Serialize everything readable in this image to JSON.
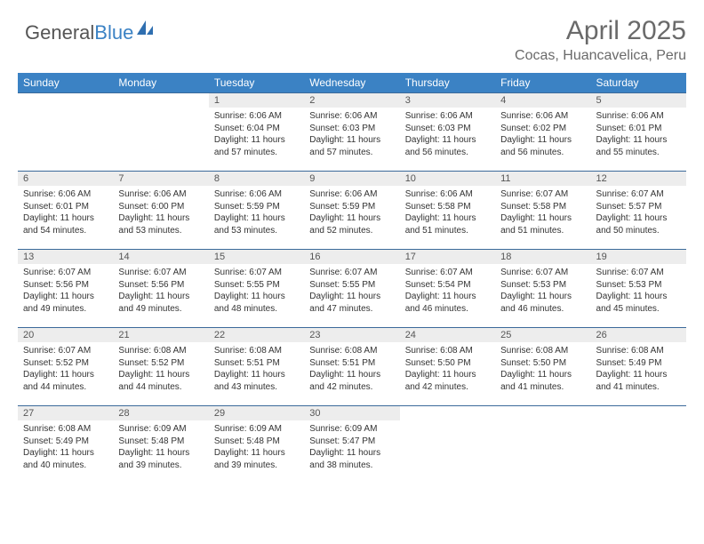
{
  "brand": {
    "name_a": "General",
    "name_b": "Blue"
  },
  "title": "April 2025",
  "location": "Cocas, Huancavelica, Peru",
  "colors": {
    "header_bg": "#3b82c4",
    "header_text": "#ffffff",
    "row_border": "#3b6a9a",
    "daynum_bg": "#ededed",
    "text": "#333333",
    "muted": "#6a6a6a"
  },
  "weekdays": [
    "Sunday",
    "Monday",
    "Tuesday",
    "Wednesday",
    "Thursday",
    "Friday",
    "Saturday"
  ],
  "weeks": [
    [
      {
        "n": "",
        "sr": "",
        "ss": "",
        "dl": ""
      },
      {
        "n": "",
        "sr": "",
        "ss": "",
        "dl": ""
      },
      {
        "n": "1",
        "sr": "Sunrise: 6:06 AM",
        "ss": "Sunset: 6:04 PM",
        "dl": "Daylight: 11 hours and 57 minutes."
      },
      {
        "n": "2",
        "sr": "Sunrise: 6:06 AM",
        "ss": "Sunset: 6:03 PM",
        "dl": "Daylight: 11 hours and 57 minutes."
      },
      {
        "n": "3",
        "sr": "Sunrise: 6:06 AM",
        "ss": "Sunset: 6:03 PM",
        "dl": "Daylight: 11 hours and 56 minutes."
      },
      {
        "n": "4",
        "sr": "Sunrise: 6:06 AM",
        "ss": "Sunset: 6:02 PM",
        "dl": "Daylight: 11 hours and 56 minutes."
      },
      {
        "n": "5",
        "sr": "Sunrise: 6:06 AM",
        "ss": "Sunset: 6:01 PM",
        "dl": "Daylight: 11 hours and 55 minutes."
      }
    ],
    [
      {
        "n": "6",
        "sr": "Sunrise: 6:06 AM",
        "ss": "Sunset: 6:01 PM",
        "dl": "Daylight: 11 hours and 54 minutes."
      },
      {
        "n": "7",
        "sr": "Sunrise: 6:06 AM",
        "ss": "Sunset: 6:00 PM",
        "dl": "Daylight: 11 hours and 53 minutes."
      },
      {
        "n": "8",
        "sr": "Sunrise: 6:06 AM",
        "ss": "Sunset: 5:59 PM",
        "dl": "Daylight: 11 hours and 53 minutes."
      },
      {
        "n": "9",
        "sr": "Sunrise: 6:06 AM",
        "ss": "Sunset: 5:59 PM",
        "dl": "Daylight: 11 hours and 52 minutes."
      },
      {
        "n": "10",
        "sr": "Sunrise: 6:06 AM",
        "ss": "Sunset: 5:58 PM",
        "dl": "Daylight: 11 hours and 51 minutes."
      },
      {
        "n": "11",
        "sr": "Sunrise: 6:07 AM",
        "ss": "Sunset: 5:58 PM",
        "dl": "Daylight: 11 hours and 51 minutes."
      },
      {
        "n": "12",
        "sr": "Sunrise: 6:07 AM",
        "ss": "Sunset: 5:57 PM",
        "dl": "Daylight: 11 hours and 50 minutes."
      }
    ],
    [
      {
        "n": "13",
        "sr": "Sunrise: 6:07 AM",
        "ss": "Sunset: 5:56 PM",
        "dl": "Daylight: 11 hours and 49 minutes."
      },
      {
        "n": "14",
        "sr": "Sunrise: 6:07 AM",
        "ss": "Sunset: 5:56 PM",
        "dl": "Daylight: 11 hours and 49 minutes."
      },
      {
        "n": "15",
        "sr": "Sunrise: 6:07 AM",
        "ss": "Sunset: 5:55 PM",
        "dl": "Daylight: 11 hours and 48 minutes."
      },
      {
        "n": "16",
        "sr": "Sunrise: 6:07 AM",
        "ss": "Sunset: 5:55 PM",
        "dl": "Daylight: 11 hours and 47 minutes."
      },
      {
        "n": "17",
        "sr": "Sunrise: 6:07 AM",
        "ss": "Sunset: 5:54 PM",
        "dl": "Daylight: 11 hours and 46 minutes."
      },
      {
        "n": "18",
        "sr": "Sunrise: 6:07 AM",
        "ss": "Sunset: 5:53 PM",
        "dl": "Daylight: 11 hours and 46 minutes."
      },
      {
        "n": "19",
        "sr": "Sunrise: 6:07 AM",
        "ss": "Sunset: 5:53 PM",
        "dl": "Daylight: 11 hours and 45 minutes."
      }
    ],
    [
      {
        "n": "20",
        "sr": "Sunrise: 6:07 AM",
        "ss": "Sunset: 5:52 PM",
        "dl": "Daylight: 11 hours and 44 minutes."
      },
      {
        "n": "21",
        "sr": "Sunrise: 6:08 AM",
        "ss": "Sunset: 5:52 PM",
        "dl": "Daylight: 11 hours and 44 minutes."
      },
      {
        "n": "22",
        "sr": "Sunrise: 6:08 AM",
        "ss": "Sunset: 5:51 PM",
        "dl": "Daylight: 11 hours and 43 minutes."
      },
      {
        "n": "23",
        "sr": "Sunrise: 6:08 AM",
        "ss": "Sunset: 5:51 PM",
        "dl": "Daylight: 11 hours and 42 minutes."
      },
      {
        "n": "24",
        "sr": "Sunrise: 6:08 AM",
        "ss": "Sunset: 5:50 PM",
        "dl": "Daylight: 11 hours and 42 minutes."
      },
      {
        "n": "25",
        "sr": "Sunrise: 6:08 AM",
        "ss": "Sunset: 5:50 PM",
        "dl": "Daylight: 11 hours and 41 minutes."
      },
      {
        "n": "26",
        "sr": "Sunrise: 6:08 AM",
        "ss": "Sunset: 5:49 PM",
        "dl": "Daylight: 11 hours and 41 minutes."
      }
    ],
    [
      {
        "n": "27",
        "sr": "Sunrise: 6:08 AM",
        "ss": "Sunset: 5:49 PM",
        "dl": "Daylight: 11 hours and 40 minutes."
      },
      {
        "n": "28",
        "sr": "Sunrise: 6:09 AM",
        "ss": "Sunset: 5:48 PM",
        "dl": "Daylight: 11 hours and 39 minutes."
      },
      {
        "n": "29",
        "sr": "Sunrise: 6:09 AM",
        "ss": "Sunset: 5:48 PM",
        "dl": "Daylight: 11 hours and 39 minutes."
      },
      {
        "n": "30",
        "sr": "Sunrise: 6:09 AM",
        "ss": "Sunset: 5:47 PM",
        "dl": "Daylight: 11 hours and 38 minutes."
      },
      {
        "n": "",
        "sr": "",
        "ss": "",
        "dl": ""
      },
      {
        "n": "",
        "sr": "",
        "ss": "",
        "dl": ""
      },
      {
        "n": "",
        "sr": "",
        "ss": "",
        "dl": ""
      }
    ]
  ]
}
